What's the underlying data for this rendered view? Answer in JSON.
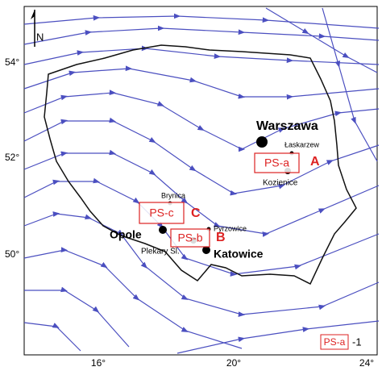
{
  "axis": {
    "lat_labels": [
      "54°",
      "52°",
      "50°"
    ],
    "lon_labels": [
      "16°",
      "20°",
      "24°"
    ]
  },
  "north": "N",
  "places": [
    {
      "name": "Warszawa"
    },
    {
      "name": "Łaskarzew"
    },
    {
      "name": "Kozienice"
    },
    {
      "name": "Brynica"
    },
    {
      "name": "Pyrzowice"
    },
    {
      "name": "Opole"
    },
    {
      "name": "Plekary Śl."
    },
    {
      "name": "Katowice"
    }
  ],
  "stations": [
    {
      "label": "PS-a",
      "site": "A"
    },
    {
      "label": "PS-b",
      "site": "B"
    },
    {
      "label": "PS-c",
      "site": "C"
    }
  ],
  "legend": {
    "label": "PS-a",
    "number": "-1"
  }
}
